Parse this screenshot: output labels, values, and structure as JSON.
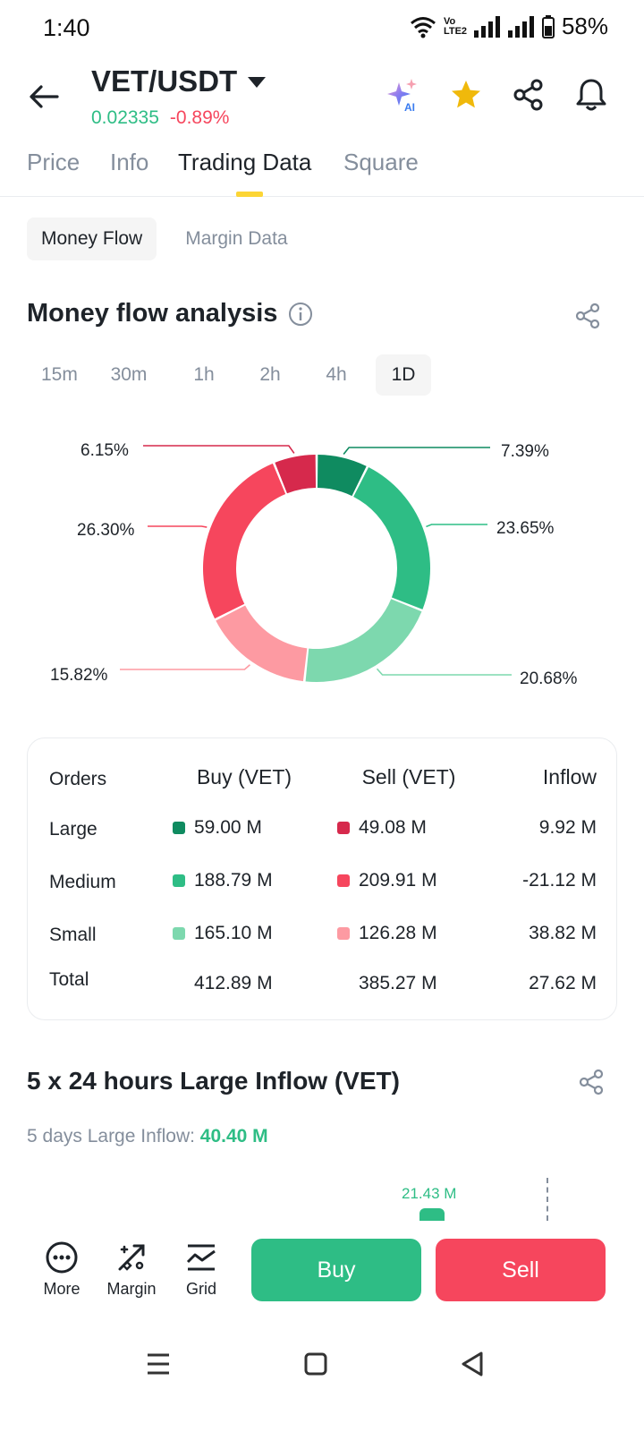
{
  "status": {
    "time": "1:40",
    "network_label": "Vo LTE2",
    "battery": "58%"
  },
  "header": {
    "pair": "VET/USDT",
    "price": "0.02335",
    "change": "-0.89%",
    "ai_label": "AI"
  },
  "tabs": [
    "Price",
    "Info",
    "Trading Data",
    "Square"
  ],
  "subtabs": [
    "Money Flow",
    "Margin Data"
  ],
  "money_flow": {
    "title": "Money flow analysis",
    "intervals": [
      "15m",
      "30m",
      "1h",
      "2h",
      "4h",
      "1D"
    ],
    "selected_interval": "1D"
  },
  "chart_data": {
    "type": "pie",
    "title": "Money flow analysis",
    "slices": [
      {
        "label": "Large Buy",
        "value": 7.39,
        "display": "7.39%",
        "color": "#0f8b60"
      },
      {
        "label": "Medium Buy",
        "value": 23.65,
        "display": "23.65%",
        "color": "#2ebd85"
      },
      {
        "label": "Small Buy",
        "value": 20.68,
        "display": "20.68%",
        "color": "#7dd8ae"
      },
      {
        "label": "Small Sell",
        "value": 15.82,
        "display": "15.82%",
        "color": "#fd9aa2"
      },
      {
        "label": "Medium Sell",
        "value": 26.3,
        "display": "26.30%",
        "color": "#f6465d"
      },
      {
        "label": "Large Sell",
        "value": 6.15,
        "display": "6.15%",
        "color": "#d6294c"
      }
    ]
  },
  "orders": {
    "headers": {
      "orders": "Orders",
      "buy": "Buy (VET)",
      "sell": "Sell (VET)",
      "inflow": "Inflow"
    },
    "rows": [
      {
        "label": "Large",
        "buy": "59.00 M",
        "sell": "49.08 M",
        "inflow": "9.92 M",
        "buy_color": "#0f8b60",
        "sell_color": "#d6294c"
      },
      {
        "label": "Medium",
        "buy": "188.79 M",
        "sell": "209.91 M",
        "inflow": "-21.12 M",
        "buy_color": "#2ebd85",
        "sell_color": "#f6465d"
      },
      {
        "label": "Small",
        "buy": "165.10 M",
        "sell": "126.28 M",
        "inflow": "38.82 M",
        "buy_color": "#7dd8ae",
        "sell_color": "#fd9aa2"
      }
    ],
    "total": {
      "label": "Total",
      "buy": "412.89 M",
      "sell": "385.27 M",
      "inflow": "27.62 M"
    }
  },
  "large_inflow": {
    "title": "5 x 24 hours Large Inflow (VET)",
    "subtitle_label": "5 days Large Inflow:",
    "subtitle_value": "40.40 M",
    "bar_value_label": "21.43 M"
  },
  "bottom": {
    "more": "More",
    "margin": "Margin",
    "grid": "Grid",
    "buy": "Buy",
    "sell": "Sell"
  }
}
